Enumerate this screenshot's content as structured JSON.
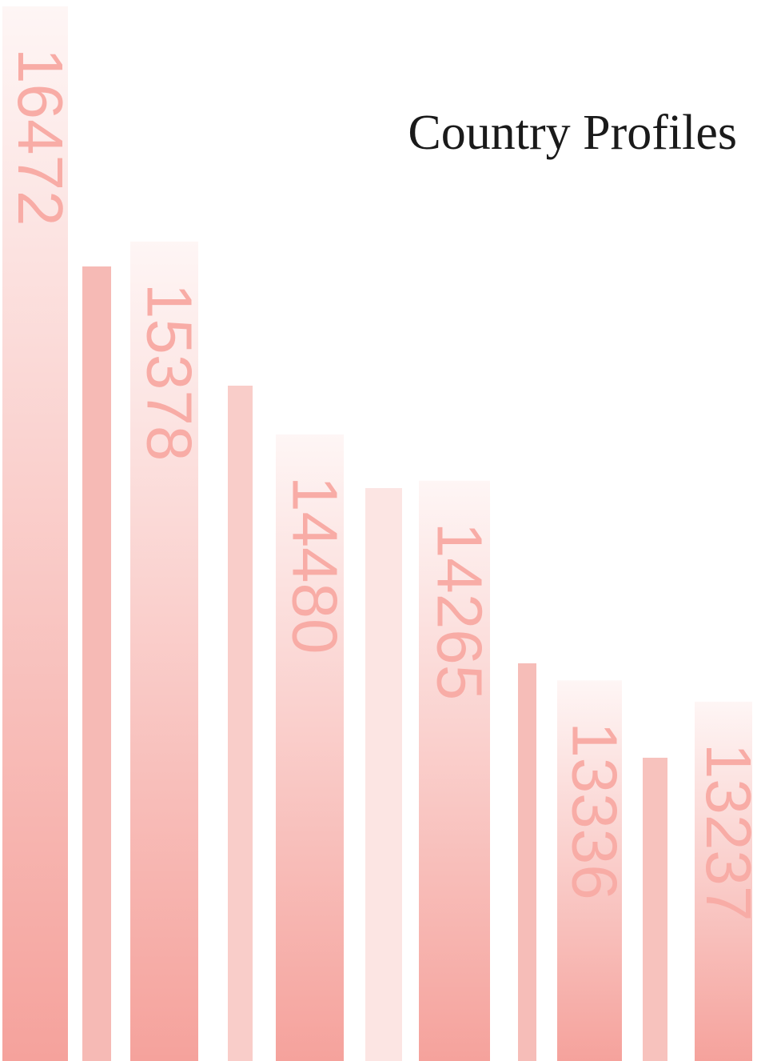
{
  "chart_data": {
    "type": "bar",
    "title": "Country Profiles",
    "values": [
      16472,
      15378,
      14480,
      14265,
      13336,
      13237
    ],
    "color": "#f5a29c",
    "label_color": "#f8aca6",
    "ylim": [
      11565,
      16472
    ]
  }
}
